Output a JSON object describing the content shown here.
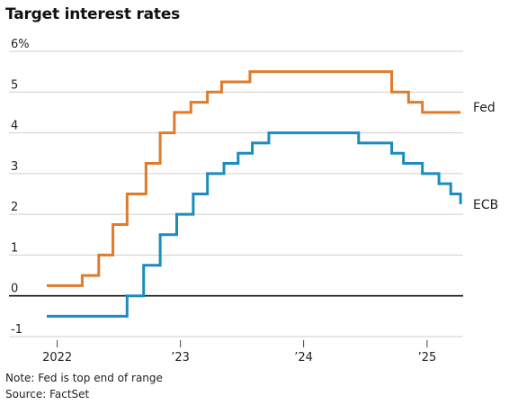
{
  "title": "Target interest rates",
  "note": "Note: Fed is top end of range",
  "source": "Source: FactSet",
  "colors": {
    "fed": "#e07b2a",
    "ecb": "#1a8cbf",
    "grid": "#cfcfcf",
    "zero": "#111111"
  },
  "chart_data": {
    "type": "line",
    "title": "Target interest rates",
    "xlabel": "",
    "ylabel": "",
    "ylim": [
      -1,
      6
    ],
    "xlim": [
      "2021-11-15",
      "2025-04-15"
    ],
    "grid": true,
    "legend": "inline labels at right end of lines",
    "y_ticks": [
      {
        "value": 6,
        "label": "6%"
      },
      {
        "value": 5,
        "label": "5"
      },
      {
        "value": 4,
        "label": "4"
      },
      {
        "value": 3,
        "label": "3"
      },
      {
        "value": 2,
        "label": "2"
      },
      {
        "value": 1,
        "label": "1"
      },
      {
        "value": 0,
        "label": "0"
      },
      {
        "value": -1,
        "label": "-1"
      }
    ],
    "x_ticks": [
      {
        "date": "2022-01-01",
        "label": "2022"
      },
      {
        "date": "2023-01-01",
        "label": "’23"
      },
      {
        "date": "2024-01-01",
        "label": "’24"
      },
      {
        "date": "2025-01-01",
        "label": "’25"
      }
    ],
    "series": [
      {
        "name": "Fed",
        "type": "step",
        "points": [
          {
            "x": "2021-12-01",
            "y": 0.25
          },
          {
            "x": "2022-03-16",
            "y": 0.5
          },
          {
            "x": "2022-05-04",
            "y": 1.0
          },
          {
            "x": "2022-06-15",
            "y": 1.75
          },
          {
            "x": "2022-07-27",
            "y": 2.5
          },
          {
            "x": "2022-09-21",
            "y": 3.25
          },
          {
            "x": "2022-11-02",
            "y": 4.0
          },
          {
            "x": "2022-12-14",
            "y": 4.5
          },
          {
            "x": "2023-02-01",
            "y": 4.75
          },
          {
            "x": "2023-03-22",
            "y": 5.0
          },
          {
            "x": "2023-05-03",
            "y": 5.25
          },
          {
            "x": "2023-07-26",
            "y": 5.5
          },
          {
            "x": "2024-09-18",
            "y": 5.0
          },
          {
            "x": "2024-11-07",
            "y": 4.75
          },
          {
            "x": "2024-12-18",
            "y": 4.5
          },
          {
            "x": "2025-04-10",
            "y": 4.5
          }
        ]
      },
      {
        "name": "ECB",
        "type": "step",
        "points": [
          {
            "x": "2021-12-01",
            "y": -0.5
          },
          {
            "x": "2022-07-27",
            "y": 0.0
          },
          {
            "x": "2022-09-14",
            "y": 0.75
          },
          {
            "x": "2022-11-02",
            "y": 1.5
          },
          {
            "x": "2022-12-21",
            "y": 2.0
          },
          {
            "x": "2023-02-08",
            "y": 2.5
          },
          {
            "x": "2023-03-22",
            "y": 3.0
          },
          {
            "x": "2023-05-10",
            "y": 3.25
          },
          {
            "x": "2023-06-21",
            "y": 3.5
          },
          {
            "x": "2023-08-02",
            "y": 3.75
          },
          {
            "x": "2023-09-20",
            "y": 4.0
          },
          {
            "x": "2024-06-12",
            "y": 3.75
          },
          {
            "x": "2024-09-18",
            "y": 3.5
          },
          {
            "x": "2024-10-23",
            "y": 3.25
          },
          {
            "x": "2024-12-18",
            "y": 3.0
          },
          {
            "x": "2025-02-05",
            "y": 2.75
          },
          {
            "x": "2025-03-12",
            "y": 2.5
          },
          {
            "x": "2025-04-10",
            "y": 2.25
          }
        ]
      }
    ]
  }
}
